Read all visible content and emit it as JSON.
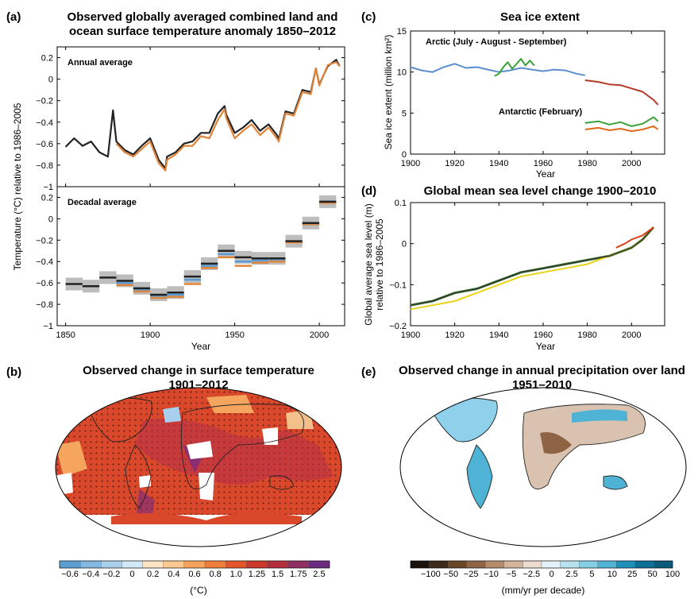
{
  "panel_a": {
    "label": "(a)",
    "title_line1": "Observed globally averaged combined land and",
    "title_line2": "ocean surface temperature anomaly 1850–2012",
    "annual_label": "Annual average",
    "decadal_label": "Decadal average",
    "ylabel": "Temperature (°C) relative to 1986–2005",
    "xlabel": "Year"
  },
  "panel_b": {
    "label": "(b)",
    "title_line1": "Observed change in surface temperature",
    "title_line2": "1901–2012",
    "colorbar_unit": "(°C)",
    "colorbar_ticks": [
      "−0.6",
      "−0.4",
      "−0.2",
      "0",
      "0.2",
      "0.4",
      "0.6",
      "0.8",
      "1.0",
      "1.25",
      "1.5",
      "1.75",
      "2.5"
    ],
    "colorbar_colors": [
      "#5e9fd3",
      "#83b8e0",
      "#aad0ec",
      "#d3e8f6",
      "#fde4c4",
      "#fbc88f",
      "#f7a35c",
      "#f07d3a",
      "#e4552a",
      "#cd3a2c",
      "#b42d3d",
      "#8f2f63",
      "#6b2b80"
    ]
  },
  "panel_c": {
    "label": "(c)",
    "title": "Sea ice extent",
    "arctic_label": "Arctic (July - August - September)",
    "antarctic_label": "Antarctic (February)",
    "ylabel": "Sea ice extent (million km²)",
    "xlabel": "Year"
  },
  "panel_d": {
    "label": "(d)",
    "title": "Global mean sea level change 1900–2010",
    "ylabel_line1": "Global average sea level (m)",
    "ylabel_line2": "relative to 1986–2005",
    "xlabel": "Year"
  },
  "panel_e": {
    "label": "(e)",
    "title_line1": "Observed change in annual precipitation over land",
    "title_line2": "1951–2010",
    "colorbar_unit": "(mm/yr per decade)",
    "colorbar_ticks": [
      "−100",
      "−50",
      "−25",
      "−10",
      "−5",
      "−2.5",
      "0",
      "2.5",
      "5",
      "10",
      "25",
      "50",
      "100"
    ],
    "colorbar_colors": [
      "#1a120c",
      "#3d2a1a",
      "#6a4526",
      "#8e6444",
      "#b48b6b",
      "#d4b39b",
      "#eddccf",
      "#e5f3f8",
      "#b9e2f0",
      "#86cde6",
      "#4fb3d6",
      "#1e90b9",
      "#0d6f95",
      "#0a5a7a"
    ]
  },
  "chart_data": [
    {
      "id": "a-annual",
      "type": "line",
      "title": "Annual average",
      "xlabel": "Year",
      "ylabel": "Temperature (°C) relative to 1986–2005",
      "xlim": [
        1845,
        2015
      ],
      "ylim": [
        -1.0,
        0.3
      ],
      "xticks": [
        1850,
        1900,
        1950,
        2000
      ],
      "yticks": [
        -1,
        -0.8,
        -0.6,
        -0.4,
        -0.2,
        0,
        0.2
      ],
      "series": [
        {
          "color": "#222222",
          "x": [
            1850,
            1855,
            1860,
            1865,
            1870,
            1875,
            1878,
            1880,
            1885,
            1890,
            1895,
            1900,
            1905,
            1909,
            1910,
            1915,
            1920,
            1925,
            1930,
            1935,
            1940,
            1944,
            1945,
            1950,
            1955,
            1960,
            1965,
            1970,
            1975,
            1976,
            1980,
            1985,
            1990,
            1995,
            1998,
            2000,
            2005,
            2010,
            2012
          ],
          "y": [
            -0.63,
            -0.55,
            -0.62,
            -0.58,
            -0.68,
            -0.72,
            -0.29,
            -0.58,
            -0.66,
            -0.7,
            -0.62,
            -0.55,
            -0.75,
            -0.83,
            -0.72,
            -0.68,
            -0.6,
            -0.58,
            -0.5,
            -0.5,
            -0.32,
            -0.25,
            -0.33,
            -0.5,
            -0.45,
            -0.38,
            -0.48,
            -0.42,
            -0.52,
            -0.56,
            -0.3,
            -0.32,
            -0.1,
            -0.12,
            0.1,
            -0.05,
            0.12,
            0.18,
            0.12
          ]
        },
        {
          "color": "#e0843a",
          "x": [
            1880,
            1885,
            1890,
            1895,
            1900,
            1905,
            1909,
            1910,
            1915,
            1920,
            1925,
            1930,
            1935,
            1940,
            1944,
            1945,
            1950,
            1955,
            1960,
            1965,
            1970,
            1975,
            1976,
            1980,
            1985,
            1990,
            1995,
            1998,
            2000,
            2005,
            2010,
            2012
          ],
          "y": [
            -0.6,
            -0.68,
            -0.72,
            -0.65,
            -0.58,
            -0.78,
            -0.85,
            -0.75,
            -0.7,
            -0.62,
            -0.62,
            -0.53,
            -0.55,
            -0.38,
            -0.28,
            -0.36,
            -0.55,
            -0.48,
            -0.42,
            -0.52,
            -0.45,
            -0.55,
            -0.58,
            -0.32,
            -0.34,
            -0.12,
            -0.14,
            0.1,
            -0.06,
            0.13,
            0.16,
            0.12
          ]
        }
      ]
    },
    {
      "id": "a-decadal",
      "type": "bar",
      "title": "Decadal average",
      "xlabel": "Year",
      "xlim": [
        1845,
        2015
      ],
      "ylim": [
        -1.0,
        0.3
      ],
      "xticks": [
        1850,
        1900,
        1950,
        2000
      ],
      "yticks": [
        -1,
        -0.8,
        -0.6,
        -0.4,
        -0.2,
        0,
        0.2
      ],
      "categories": [
        "1850s",
        "1860s",
        "1870s",
        "1880s",
        "1890s",
        "1900s",
        "1910s",
        "1920s",
        "1930s",
        "1940s",
        "1950s",
        "1960s",
        "1970s",
        "1980s",
        "1990s",
        "2000s"
      ],
      "series": [
        {
          "color": "#222222",
          "values": [
            -0.61,
            -0.63,
            -0.55,
            -0.58,
            -0.65,
            -0.71,
            -0.69,
            -0.54,
            -0.42,
            -0.3,
            -0.36,
            -0.37,
            -0.37,
            -0.21,
            -0.04,
            0.16
          ]
        },
        {
          "color": "#e0843a",
          "values": [
            null,
            null,
            null,
            -0.62,
            -0.68,
            -0.74,
            -0.73,
            -0.61,
            -0.46,
            -0.36,
            -0.44,
            -0.41,
            -0.4,
            -0.22,
            -0.05,
            0.15
          ]
        },
        {
          "color": "#5b9bd5",
          "values": [
            null,
            null,
            null,
            -0.6,
            -0.66,
            -0.72,
            -0.71,
            -0.57,
            -0.44,
            -0.33,
            -0.4,
            -0.39,
            -0.38,
            -0.21,
            -0.05,
            0.16
          ]
        }
      ]
    },
    {
      "id": "c-sea-ice",
      "type": "line",
      "title": "Sea ice extent",
      "xlabel": "Year",
      "ylabel": "Sea ice extent (million km²)",
      "xlim": [
        1900,
        2015
      ],
      "ylim": [
        0,
        15
      ],
      "xticks": [
        1900,
        1920,
        1940,
        1960,
        1980,
        2000
      ],
      "yticks": [
        0,
        5,
        10,
        15
      ],
      "series": [
        {
          "color": "#5b8fcf",
          "x": [
            1900,
            1905,
            1910,
            1915,
            1920,
            1925,
            1930,
            1935,
            1940,
            1945,
            1950,
            1955,
            1960,
            1965,
            1970,
            1975,
            1979
          ],
          "y": [
            10.6,
            10.2,
            10.0,
            10.6,
            11.0,
            10.5,
            10.6,
            10.3,
            10.0,
            10.2,
            10.5,
            10.3,
            10.1,
            10.3,
            10.2,
            9.8,
            9.6
          ]
        },
        {
          "color": "#3aa13a",
          "x": [
            1938,
            1940,
            1942,
            1944,
            1946,
            1948,
            1950,
            1952,
            1954,
            1956
          ],
          "y": [
            9.5,
            9.8,
            10.6,
            11.2,
            10.4,
            11.0,
            11.6,
            10.8,
            11.4,
            10.8
          ]
        },
        {
          "color": "#b53a2a",
          "x": [
            1979,
            1985,
            1990,
            1995,
            2000,
            2005,
            2010,
            2012
          ],
          "y": [
            9.0,
            8.8,
            8.5,
            8.4,
            8.0,
            7.6,
            6.6,
            6.0
          ]
        },
        {
          "color": "#3aa13a",
          "x": [
            1979,
            1985,
            1990,
            1995,
            2000,
            2005,
            2010,
            2012
          ],
          "y": [
            3.8,
            4.0,
            3.6,
            3.9,
            3.4,
            3.7,
            4.5,
            4.0
          ]
        },
        {
          "color": "#e06a1c",
          "x": [
            1979,
            1985,
            1990,
            1995,
            2000,
            2005,
            2010,
            2012
          ],
          "y": [
            3.0,
            3.2,
            2.9,
            3.1,
            2.8,
            3.0,
            3.4,
            3.0
          ]
        }
      ]
    },
    {
      "id": "d-sea-level",
      "type": "line",
      "title": "Global mean sea level change 1900–2010",
      "xlabel": "Year",
      "ylabel": "Global average sea level (m) relative to 1986–2005",
      "xlim": [
        1900,
        2015
      ],
      "ylim": [
        -0.2,
        0.1
      ],
      "xticks": [
        1900,
        1920,
        1940,
        1960,
        1980,
        2000
      ],
      "yticks": [
        -0.2,
        -0.1,
        0,
        0.1
      ],
      "series": [
        {
          "color": "#3a7d2a",
          "x": [
            1900,
            1910,
            1920,
            1930,
            1940,
            1950,
            1960,
            1970,
            1980,
            1990,
            2000,
            2005,
            2010
          ],
          "y": [
            -0.15,
            -0.14,
            -0.12,
            -0.11,
            -0.09,
            -0.07,
            -0.06,
            -0.05,
            -0.04,
            -0.03,
            -0.01,
            0.01,
            0.04
          ]
        },
        {
          "color": "#e8d21a",
          "x": [
            1900,
            1910,
            1920,
            1930,
            1940,
            1950,
            1960,
            1970,
            1980,
            1990,
            2000,
            2005,
            2010
          ],
          "y": [
            -0.16,
            -0.15,
            -0.14,
            -0.12,
            -0.1,
            -0.08,
            -0.07,
            -0.06,
            -0.05,
            -0.03,
            -0.01,
            0.01,
            0.04
          ]
        },
        {
          "color": "#333333",
          "x": [
            1900,
            1910,
            1920,
            1930,
            1940,
            1950,
            1960,
            1970,
            1980,
            1990,
            2000,
            2005,
            2010
          ],
          "y": [
            -0.15,
            -0.14,
            -0.12,
            -0.11,
            -0.09,
            -0.07,
            -0.06,
            -0.05,
            -0.04,
            -0.03,
            -0.01,
            0.01,
            0.04
          ]
        },
        {
          "color": "#d9421a",
          "x": [
            1993,
            1997,
            2000,
            2005,
            2010
          ],
          "y": [
            -0.01,
            0.0,
            0.01,
            0.02,
            0.04
          ]
        }
      ]
    }
  ]
}
